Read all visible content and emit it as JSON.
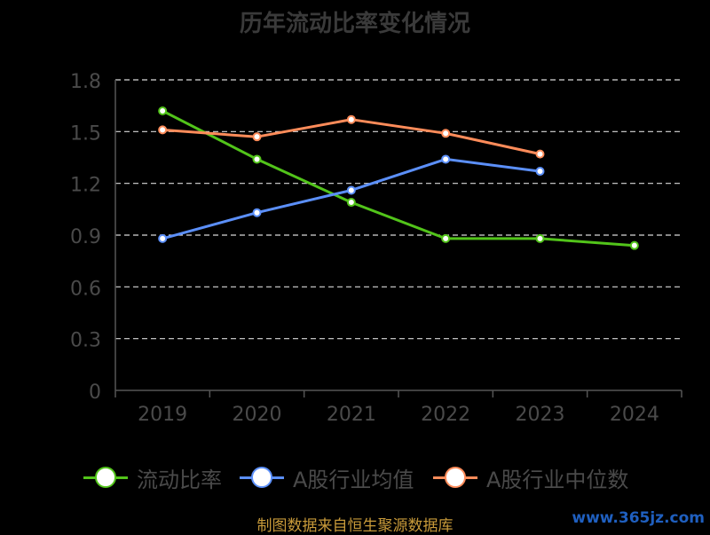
{
  "title": "历年流动比率变化情况",
  "source": "制图数据来自恒生聚源数据库",
  "watermark": "www.365jz.com",
  "chart_data": {
    "type": "line",
    "categories": [
      "2019",
      "2020",
      "2021",
      "2022",
      "2023",
      "2024"
    ],
    "ylim": [
      0,
      1.8
    ],
    "yticks": [
      "0",
      "0.3",
      "0.6",
      "0.9",
      "1.2",
      "1.5",
      "1.8"
    ],
    "grid": true,
    "legend_position": "bottom",
    "series": [
      {
        "name": "流动比率",
        "color": "#52c41a",
        "values": [
          1.62,
          1.34,
          1.09,
          0.88,
          0.88,
          0.84
        ]
      },
      {
        "name": "A股行业均值",
        "color": "#5b8ff9",
        "values": [
          0.88,
          1.03,
          1.16,
          1.34,
          1.27,
          null
        ]
      },
      {
        "name": "A股行业中位数",
        "color": "#ff8c5a",
        "values": [
          1.51,
          1.47,
          1.57,
          1.49,
          1.37,
          null
        ]
      }
    ]
  }
}
